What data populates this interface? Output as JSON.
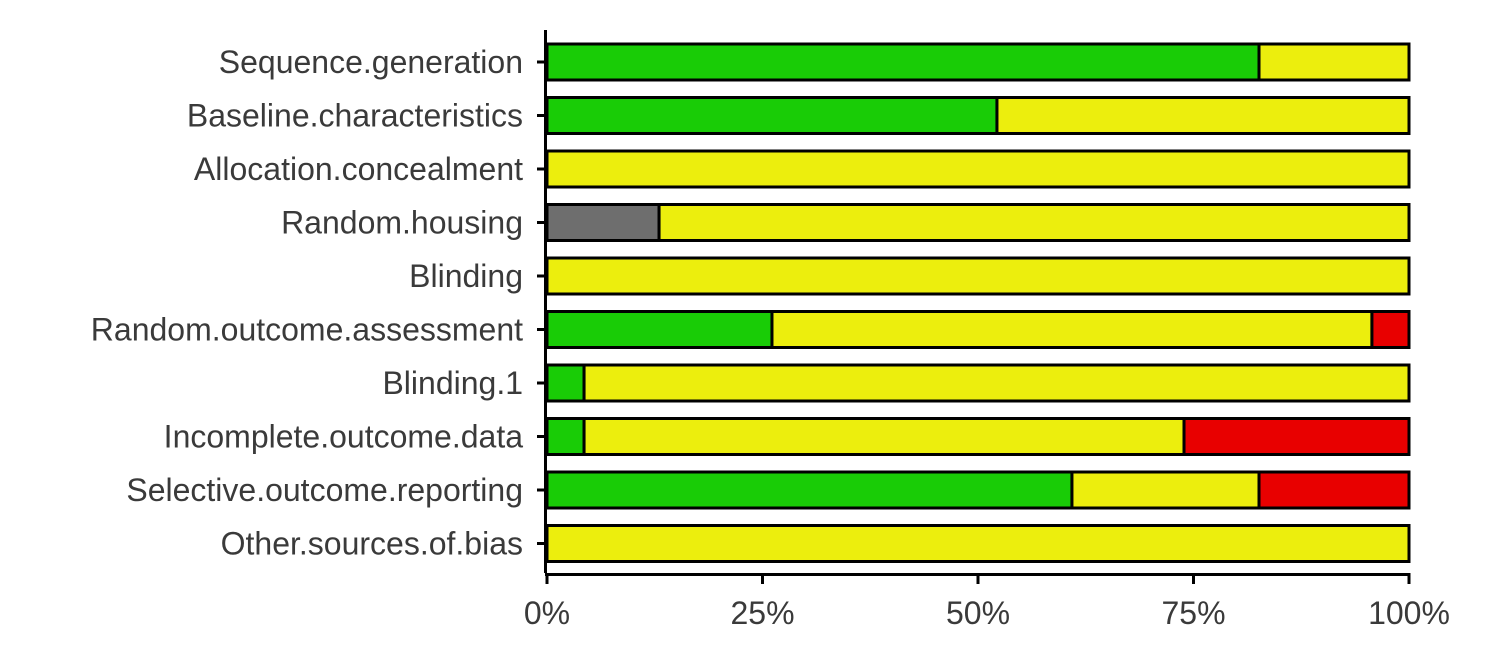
{
  "chart_data": {
    "type": "bar",
    "orientation": "horizontal",
    "stacked": true,
    "title": "",
    "xlabel": "",
    "ylabel": "",
    "xlim": [
      0,
      100
    ],
    "x_ticks": [
      {
        "value": 0,
        "label": "0%"
      },
      {
        "value": 25,
        "label": "25%"
      },
      {
        "value": 50,
        "label": "50%"
      },
      {
        "value": 75,
        "label": "75%"
      },
      {
        "value": 100,
        "label": "100%"
      }
    ],
    "grid": false,
    "legend": "none",
    "categories": [
      "Sequence.generation",
      "Baseline.characteristics",
      "Allocation.concealment",
      "Random.housing",
      "Blinding",
      "Random.outcome.assessment",
      "Blinding.1",
      "Incomplete.outcome.data",
      "Selective.outcome.reporting",
      "Other.sources.of.bias"
    ],
    "series": [
      {
        "color": "#19cc06",
        "values": [
          82.6,
          52.2,
          0,
          0,
          0,
          26.1,
          4.3,
          4.3,
          60.9,
          0
        ]
      },
      {
        "color": "#6e6e6e",
        "values": [
          0,
          0,
          0,
          13.0,
          0,
          0,
          0,
          0,
          0,
          0
        ]
      },
      {
        "color": "#ecee0d",
        "values": [
          17.4,
          47.8,
          100,
          87.0,
          100,
          69.6,
          95.7,
          69.6,
          21.7,
          100
        ]
      },
      {
        "color": "#e80000",
        "values": [
          0,
          0,
          0,
          0,
          0,
          4.3,
          0,
          26.1,
          17.4,
          0
        ]
      }
    ]
  }
}
